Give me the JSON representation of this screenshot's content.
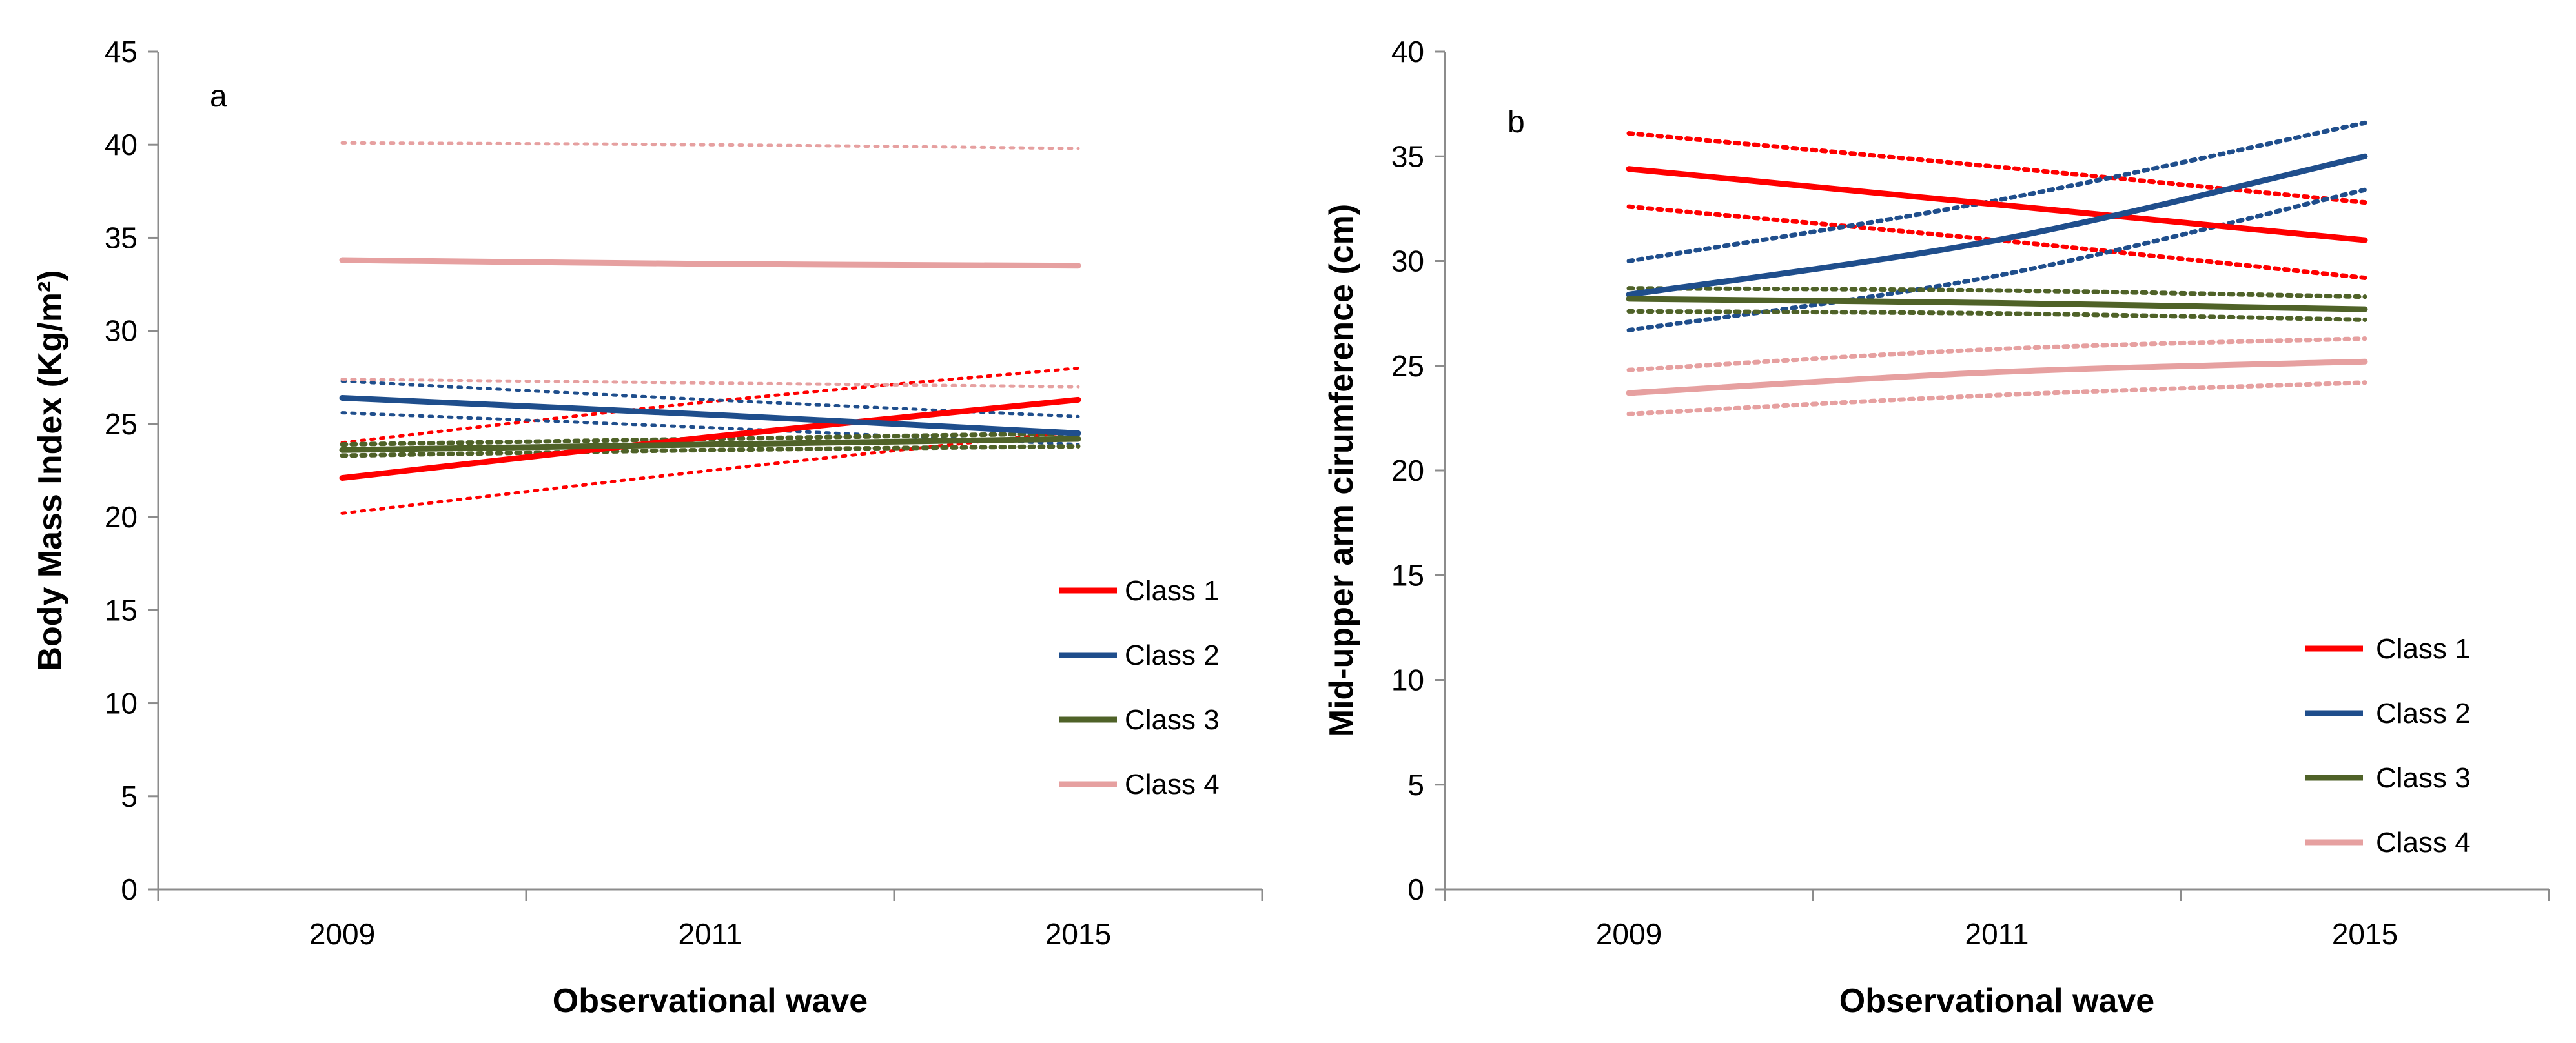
{
  "chart_data": [
    {
      "type": "line",
      "panel_label": "a",
      "categories": [
        "2009",
        "2011",
        "2015"
      ],
      "xlabel": "Observational wave",
      "ylabel": "Body Mass Index (Kg/m²)",
      "ylim": [
        0,
        45
      ],
      "yticks": [
        "0",
        "5",
        "10",
        "15",
        "20",
        "25",
        "30",
        "35",
        "40",
        "45"
      ],
      "legend_position": "right",
      "series": [
        {
          "name": "Class 1",
          "color": "#ff0000",
          "values": [
            22.1,
            24.3,
            26.3
          ],
          "lower": [
            20.2,
            22.5,
            24.6
          ],
          "upper": [
            24.0,
            26.2,
            28.0
          ],
          "ci_width": "thin"
        },
        {
          "name": "Class 2",
          "color": "#1f4e8c",
          "values": [
            26.4,
            25.5,
            24.5
          ],
          "lower": [
            25.6,
            24.8,
            23.9
          ],
          "upper": [
            27.3,
            26.3,
            25.4
          ],
          "ci_width": "thin"
        },
        {
          "name": "Class 3",
          "color": "#4f6228",
          "values": [
            23.6,
            23.9,
            24.2
          ],
          "lower": [
            23.3,
            23.6,
            23.8
          ],
          "upper": [
            23.9,
            24.2,
            24.5
          ],
          "ci_width": "thick"
        },
        {
          "name": "Class 4",
          "color": "#e6a0a0",
          "values": [
            33.8,
            33.6,
            33.5
          ],
          "lower": [
            27.4,
            27.2,
            27.0
          ],
          "upper": [
            40.1,
            40.0,
            39.8
          ],
          "ci_width": "thin"
        }
      ]
    },
    {
      "type": "line",
      "panel_label": "b",
      "categories": [
        "2009",
        "2011",
        "2015"
      ],
      "xlabel": "Observational wave",
      "ylabel": "Mid-upper arm cirumference (cm)",
      "ylim": [
        0,
        40
      ],
      "yticks": [
        "0",
        "5",
        "10",
        "15",
        "20",
        "25",
        "30",
        "35",
        "40"
      ],
      "legend_position": "bottom-right",
      "series": [
        {
          "name": "Class 1",
          "color": "#ff0000",
          "values": [
            34.4,
            32.7,
            31.0
          ],
          "lower": [
            32.6,
            31.0,
            29.2
          ],
          "upper": [
            36.1,
            34.5,
            32.8
          ],
          "ci_width": "thick"
        },
        {
          "name": "Class 2",
          "color": "#1f4e8c",
          "values": [
            28.4,
            31.0,
            35.0
          ],
          "lower": [
            26.7,
            29.3,
            33.4
          ],
          "upper": [
            30.0,
            32.9,
            36.6
          ],
          "ci_width": "thick"
        },
        {
          "name": "Class 3",
          "color": "#4f6228",
          "values": [
            28.2,
            28.0,
            27.7
          ],
          "lower": [
            27.6,
            27.5,
            27.2
          ],
          "upper": [
            28.7,
            28.6,
            28.3
          ],
          "ci_width": "thick"
        },
        {
          "name": "Class 4",
          "color": "#e6a0a0",
          "values": [
            23.7,
            24.7,
            25.2
          ],
          "lower": [
            22.7,
            23.6,
            24.2
          ],
          "upper": [
            24.8,
            25.8,
            26.3
          ],
          "ci_width": "thick"
        }
      ]
    }
  ]
}
